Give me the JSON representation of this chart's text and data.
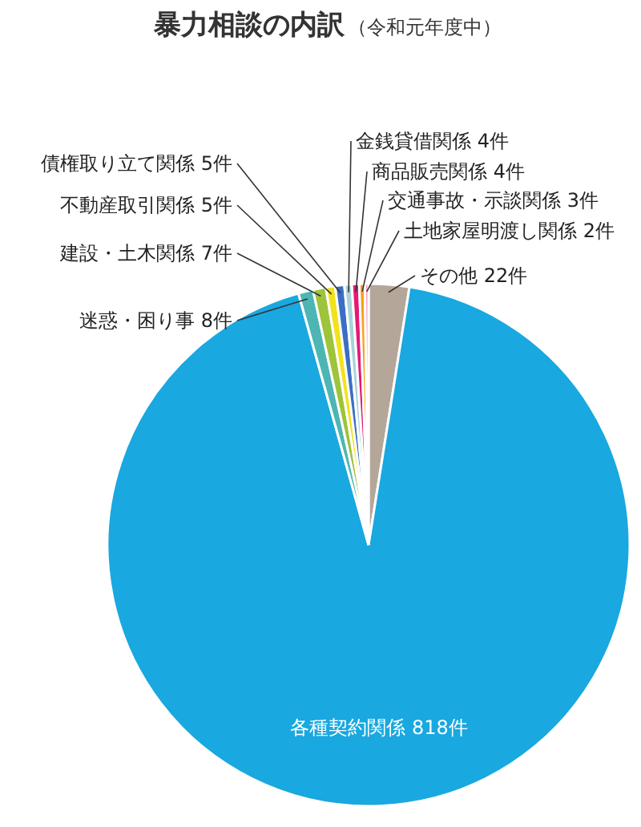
{
  "chart_data": {
    "type": "pie",
    "title": "暴力相談の内訳",
    "subtitle": "（令和元年度中）",
    "categories": [
      "その他",
      "各種契約関係",
      "迷惑・困り事",
      "建設・土木関係",
      "不動産取引関係",
      "債権取り立て関係",
      "金銭貸借関係",
      "商品販売関係",
      "交通事故・示談関係",
      "土地家屋明渡し関係"
    ],
    "values": [
      22,
      818,
      8,
      7,
      5,
      5,
      4,
      4,
      3,
      2
    ],
    "value_labels": [
      "22件",
      "818件",
      "8件",
      "7件",
      "5件",
      "5件",
      "4件",
      "4件",
      "3件",
      "2件"
    ],
    "colors": [
      "#b5a69a",
      "#19a8e0",
      "#4db6b4",
      "#9dc43a",
      "#f2e21c",
      "#3b6fc4",
      "#a8d4d8",
      "#e5197a",
      "#f5a31a",
      "#f39ac0"
    ]
  }
}
